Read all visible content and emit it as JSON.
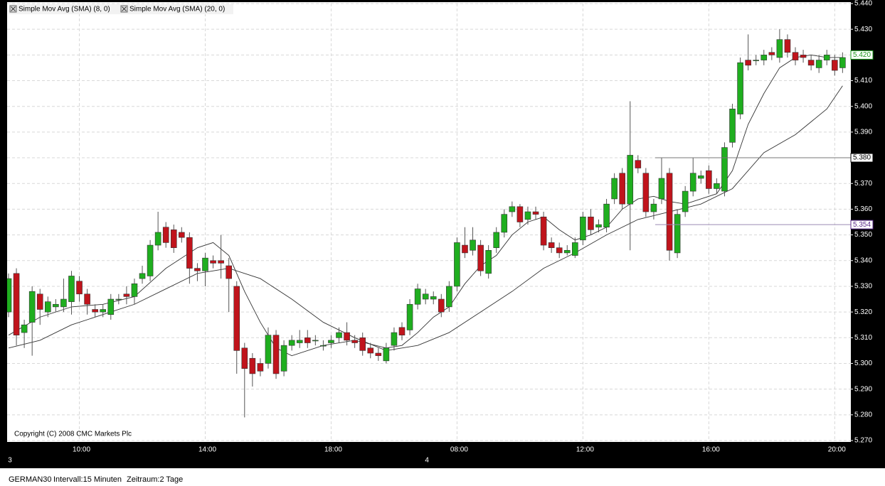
{
  "chart_data": {
    "type": "candlestick",
    "copyright": "Copyright (C) 2008 CMC Markets Plc",
    "categories": [
      null,
      null,
      null,
      null,
      null,
      null,
      null,
      null,
      null,
      "10:00",
      null,
      null,
      null,
      null,
      null,
      null,
      null,
      null,
      null,
      null,
      null,
      null,
      null,
      null,
      null,
      "14:00",
      null,
      null,
      null,
      null,
      null,
      null,
      null,
      null,
      null,
      null,
      null,
      null,
      null,
      null,
      null,
      "18:00",
      null,
      null,
      null,
      null,
      null,
      null,
      null,
      null,
      null,
      null,
      null,
      null,
      null,
      null,
      null,
      "08:00",
      null,
      null,
      null,
      null,
      null,
      null,
      null,
      null,
      null,
      null,
      null,
      null,
      null,
      null,
      null,
      "12:00",
      null,
      null,
      null,
      null,
      null,
      null,
      null,
      null,
      null,
      null,
      null,
      null,
      null,
      null,
      null,
      "16:00",
      null,
      null,
      null,
      null,
      null,
      null,
      null,
      null,
      null,
      null,
      null,
      null,
      null,
      null,
      null,
      "20:00",
      null
    ],
    "day_categories": [
      "3",
      null,
      null,
      null,
      null,
      null,
      null,
      null,
      null,
      null,
      null,
      null,
      null,
      null,
      null,
      null,
      null,
      null,
      null,
      null,
      null,
      null,
      null,
      null,
      null,
      null,
      null,
      null,
      null,
      null,
      null,
      null,
      null,
      null,
      null,
      null,
      null,
      null,
      null,
      null,
      null,
      null,
      null,
      null,
      null,
      null,
      null,
      null,
      null,
      null,
      null,
      null,
      null,
      "4",
      null,
      null,
      null,
      null,
      null,
      null,
      null,
      null,
      null,
      null,
      null,
      null,
      null,
      null,
      null,
      null,
      null,
      null,
      null,
      null,
      null,
      null,
      null,
      null,
      null,
      null,
      null,
      null,
      null,
      null,
      null,
      null,
      null,
      null,
      null,
      null,
      null,
      null,
      null,
      null,
      null,
      null,
      null,
      null,
      null,
      null,
      null,
      null,
      null,
      null,
      null,
      null,
      null
    ],
    "open": [
      5.32,
      5.335,
      5.312,
      5.316,
      5.327,
      5.32,
      5.322,
      5.322,
      5.324,
      5.332,
      5.327,
      5.321,
      5.32,
      5.319,
      5.325,
      5.327,
      5.326,
      5.333,
      5.334,
      5.346,
      5.353,
      5.352,
      5.351,
      5.349,
      5.337,
      5.336,
      5.34,
      5.34,
      5.338,
      5.33,
      5.306,
      5.302,
      5.3,
      5.3,
      5.311,
      5.297,
      5.307,
      5.308,
      5.31,
      5.309,
      5.307,
      5.308,
      5.31,
      5.312,
      5.309,
      5.31,
      5.306,
      5.304,
      5.301,
      5.307,
      5.314,
      5.313,
      5.323,
      5.325,
      5.325,
      5.325,
      5.322,
      5.33,
      5.346,
      5.344,
      5.346,
      5.335,
      5.345,
      5.351,
      5.359,
      5.361,
      5.356,
      5.359,
      5.357,
      5.347,
      5.345,
      5.343,
      5.342,
      5.348,
      5.357,
      5.353,
      5.353,
      5.364,
      5.374,
      5.362,
      5.379,
      5.374,
      5.359,
      5.364,
      5.374,
      5.343,
      5.359,
      5.367,
      5.372,
      5.375,
      5.368,
      5.367,
      5.386,
      5.397,
      5.418,
      5.418,
      5.418,
      5.421,
      5.419,
      5.426,
      5.421,
      5.42,
      5.418,
      5.415,
      5.418,
      5.418,
      5.415
    ],
    "high": [
      5.335,
      5.337,
      5.317,
      5.33,
      5.329,
      5.326,
      5.325,
      5.333,
      5.336,
      5.334,
      5.329,
      5.323,
      5.323,
      5.327,
      5.327,
      5.33,
      5.333,
      5.338,
      5.348,
      5.359,
      5.355,
      5.354,
      5.353,
      5.351,
      5.339,
      5.343,
      5.342,
      5.35,
      5.341,
      5.332,
      5.308,
      5.304,
      5.302,
      5.314,
      5.313,
      5.309,
      5.311,
      5.313,
      5.313,
      5.311,
      5.309,
      5.311,
      5.314,
      5.316,
      5.311,
      5.312,
      5.308,
      5.306,
      5.308,
      5.314,
      5.316,
      5.325,
      5.331,
      5.329,
      5.328,
      5.327,
      5.332,
      5.349,
      5.353,
      5.353,
      5.348,
      5.346,
      5.353,
      5.36,
      5.363,
      5.362,
      5.361,
      5.361,
      5.359,
      5.349,
      5.347,
      5.346,
      5.349,
      5.359,
      5.36,
      5.356,
      5.364,
      5.374,
      5.376,
      5.402,
      5.381,
      5.376,
      5.364,
      5.38,
      5.376,
      5.36,
      5.369,
      5.38,
      5.375,
      5.377,
      5.372,
      5.386,
      5.401,
      5.419,
      5.428,
      5.42,
      5.422,
      5.423,
      5.43,
      5.428,
      5.423,
      5.422,
      5.42,
      5.42,
      5.422,
      5.42,
      5.421
    ],
    "low": [
      5.318,
      5.307,
      5.306,
      5.303,
      5.315,
      5.318,
      5.32,
      5.32,
      5.319,
      5.324,
      5.319,
      5.318,
      5.318,
      5.317,
      5.323,
      5.323,
      5.323,
      5.331,
      5.332,
      5.344,
      5.345,
      5.343,
      5.347,
      5.331,
      5.332,
      5.33,
      5.337,
      5.333,
      5.32,
      5.296,
      5.279,
      5.291,
      5.295,
      5.298,
      5.294,
      5.295,
      5.305,
      5.306,
      5.306,
      5.307,
      5.305,
      5.306,
      5.308,
      5.307,
      5.306,
      5.303,
      5.302,
      5.301,
      5.3,
      5.305,
      5.309,
      5.311,
      5.321,
      5.323,
      5.323,
      5.318,
      5.32,
      5.328,
      5.341,
      5.342,
      5.334,
      5.333,
      5.343,
      5.349,
      5.357,
      5.353,
      5.354,
      5.356,
      5.344,
      5.343,
      5.341,
      5.342,
      5.341,
      5.346,
      5.35,
      5.351,
      5.351,
      5.362,
      5.36,
      5.344,
      5.374,
      5.357,
      5.356,
      5.362,
      5.34,
      5.341,
      5.357,
      5.365,
      5.37,
      5.366,
      5.366,
      5.365,
      5.384,
      5.395,
      5.414,
      5.416,
      5.416,
      5.418,
      5.417,
      5.419,
      5.416,
      5.417,
      5.414,
      5.413,
      5.416,
      5.412,
      5.413
    ],
    "close": [
      5.333,
      5.311,
      5.315,
      5.328,
      5.321,
      5.324,
      5.323,
      5.325,
      5.334,
      5.327,
      5.323,
      5.32,
      5.321,
      5.325,
      5.325,
      5.326,
      5.331,
      5.335,
      5.346,
      5.351,
      5.347,
      5.345,
      5.349,
      5.337,
      5.336,
      5.341,
      5.339,
      5.339,
      5.333,
      5.305,
      5.298,
      5.296,
      5.297,
      5.311,
      5.296,
      5.307,
      5.309,
      5.309,
      5.308,
      5.309,
      5.307,
      5.309,
      5.312,
      5.309,
      5.308,
      5.305,
      5.304,
      5.303,
      5.306,
      5.312,
      5.311,
      5.323,
      5.329,
      5.327,
      5.326,
      5.32,
      5.33,
      5.347,
      5.343,
      5.348,
      5.336,
      5.344,
      5.351,
      5.358,
      5.361,
      5.355,
      5.359,
      5.358,
      5.346,
      5.345,
      5.343,
      5.344,
      5.347,
      5.357,
      5.352,
      5.354,
      5.362,
      5.372,
      5.362,
      5.381,
      5.376,
      5.359,
      5.362,
      5.372,
      5.344,
      5.358,
      5.367,
      5.374,
      5.373,
      5.368,
      5.37,
      5.384,
      5.399,
      5.417,
      5.416,
      5.418,
      5.42,
      5.42,
      5.426,
      5.421,
      5.418,
      5.419,
      5.416,
      5.418,
      5.42,
      5.414,
      5.419
    ],
    "up_color": "#1fae1f",
    "down_color": "#c0141c",
    "series": [
      {
        "name": "Simple Mov Avg (SMA) (8, 0)",
        "color": "#333333",
        "x": [
          0,
          4,
          8,
          12,
          16,
          20,
          24,
          26,
          28,
          30,
          32,
          34,
          36,
          40,
          44,
          48,
          50,
          52,
          54,
          56,
          58,
          60,
          62,
          64,
          66,
          68,
          70,
          72,
          74,
          76,
          78,
          80,
          82,
          84,
          86,
          88,
          90,
          92,
          94,
          96,
          98,
          100,
          102,
          104,
          106
        ],
        "values": [
          5.311,
          5.318,
          5.322,
          5.323,
          5.326,
          5.337,
          5.345,
          5.347,
          5.342,
          5.328,
          5.316,
          5.306,
          5.303,
          5.307,
          5.309,
          5.306,
          5.307,
          5.312,
          5.318,
          5.322,
          5.331,
          5.338,
          5.342,
          5.35,
          5.355,
          5.357,
          5.352,
          5.348,
          5.35,
          5.353,
          5.36,
          5.364,
          5.365,
          5.363,
          5.362,
          5.364,
          5.366,
          5.375,
          5.393,
          5.405,
          5.415,
          5.419,
          5.42,
          5.419,
          5.419
        ]
      },
      {
        "name": "Simple Mov Avg (SMA) (20, 0)",
        "color": "#333333",
        "x": [
          0,
          4,
          8,
          12,
          16,
          20,
          24,
          28,
          32,
          36,
          40,
          44,
          48,
          52,
          56,
          60,
          64,
          68,
          72,
          76,
          80,
          84,
          88,
          92,
          96,
          100,
          104,
          106
        ],
        "values": [
          5.306,
          5.309,
          5.315,
          5.319,
          5.323,
          5.329,
          5.335,
          5.337,
          5.333,
          5.325,
          5.316,
          5.31,
          5.305,
          5.307,
          5.312,
          5.32,
          5.328,
          5.337,
          5.343,
          5.35,
          5.356,
          5.359,
          5.362,
          5.368,
          5.382,
          5.389,
          5.399,
          5.408
        ]
      }
    ],
    "price_lines": [
      {
        "value": 5.38,
        "label": "5.380",
        "color": "#000000"
      },
      {
        "value": 5.354,
        "label": "5.354",
        "color": "#5a2a8a"
      }
    ],
    "last_price": {
      "value": 5.42,
      "label": "5.420",
      "color": "#1a9a1a"
    },
    "ylim": [
      5.27,
      5.44
    ],
    "yticks": [
      {
        "value": 5.27,
        "label": "5.270"
      },
      {
        "value": 5.28,
        "label": "5.280"
      },
      {
        "value": 5.29,
        "label": "5.290"
      },
      {
        "value": 5.3,
        "label": "5.300"
      },
      {
        "value": 5.31,
        "label": "5.310"
      },
      {
        "value": 5.32,
        "label": "5.320"
      },
      {
        "value": 5.33,
        "label": "5.330"
      },
      {
        "value": 5.34,
        "label": "5.340"
      },
      {
        "value": 5.35,
        "label": "5.350"
      },
      {
        "value": 5.36,
        "label": "5.360"
      },
      {
        "value": 5.37,
        "label": "5.370"
      },
      {
        "value": 5.38,
        "label": "5.380"
      },
      {
        "value": 5.39,
        "label": "5.390"
      },
      {
        "value": 5.4,
        "label": "5.400"
      },
      {
        "value": 5.41,
        "label": "5.410"
      },
      {
        "value": 5.42,
        "label": "5.420"
      },
      {
        "value": 5.43,
        "label": "5.430"
      },
      {
        "value": 5.44,
        "label": "5.440"
      }
    ],
    "grid": true
  },
  "footer": {
    "symbol": "GERMAN30",
    "interval": "Intervall:15 Minuten",
    "range": "Zeitraum:2 Tage"
  }
}
